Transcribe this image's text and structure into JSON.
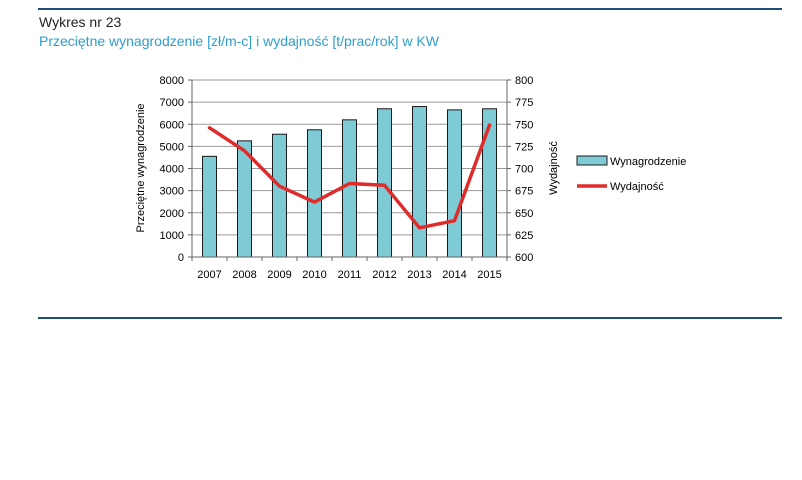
{
  "header": {
    "heading": "Wykres nr 23",
    "subtitle": "Przeciętne wynagrodzenie [zł/m-c] i wydajność [t/prac/rok] w KW"
  },
  "chart_data": {
    "type": "bar",
    "categories": [
      "2007",
      "2008",
      "2009",
      "2010",
      "2011",
      "2012",
      "2013",
      "2014",
      "2015"
    ],
    "series": [
      {
        "name": "Wynagrodzenie",
        "type": "bar",
        "axis": "left",
        "color": "#7ecbd6",
        "values": [
          4550,
          5250,
          5550,
          5750,
          6200,
          6700,
          6800,
          6650,
          6700
        ]
      },
      {
        "name": "Wydajność",
        "type": "line",
        "axis": "right",
        "color": "#e02b2b",
        "values": [
          746,
          720,
          680,
          662,
          683,
          681,
          633,
          641,
          749
        ]
      }
    ],
    "ylabel": "Przeciętne wynagrodzenie",
    "y2label": "Wydajność",
    "ylim": [
      0,
      8000
    ],
    "y2lim": [
      600,
      800
    ],
    "yticks": [
      "0",
      "1000",
      "2000",
      "3000",
      "4000",
      "5000",
      "6000",
      "7000",
      "8000"
    ],
    "y2ticks": [
      "600",
      "625",
      "650",
      "675",
      "700",
      "725",
      "750",
      "775",
      "800"
    ],
    "grid": true,
    "legend_position": "right"
  }
}
